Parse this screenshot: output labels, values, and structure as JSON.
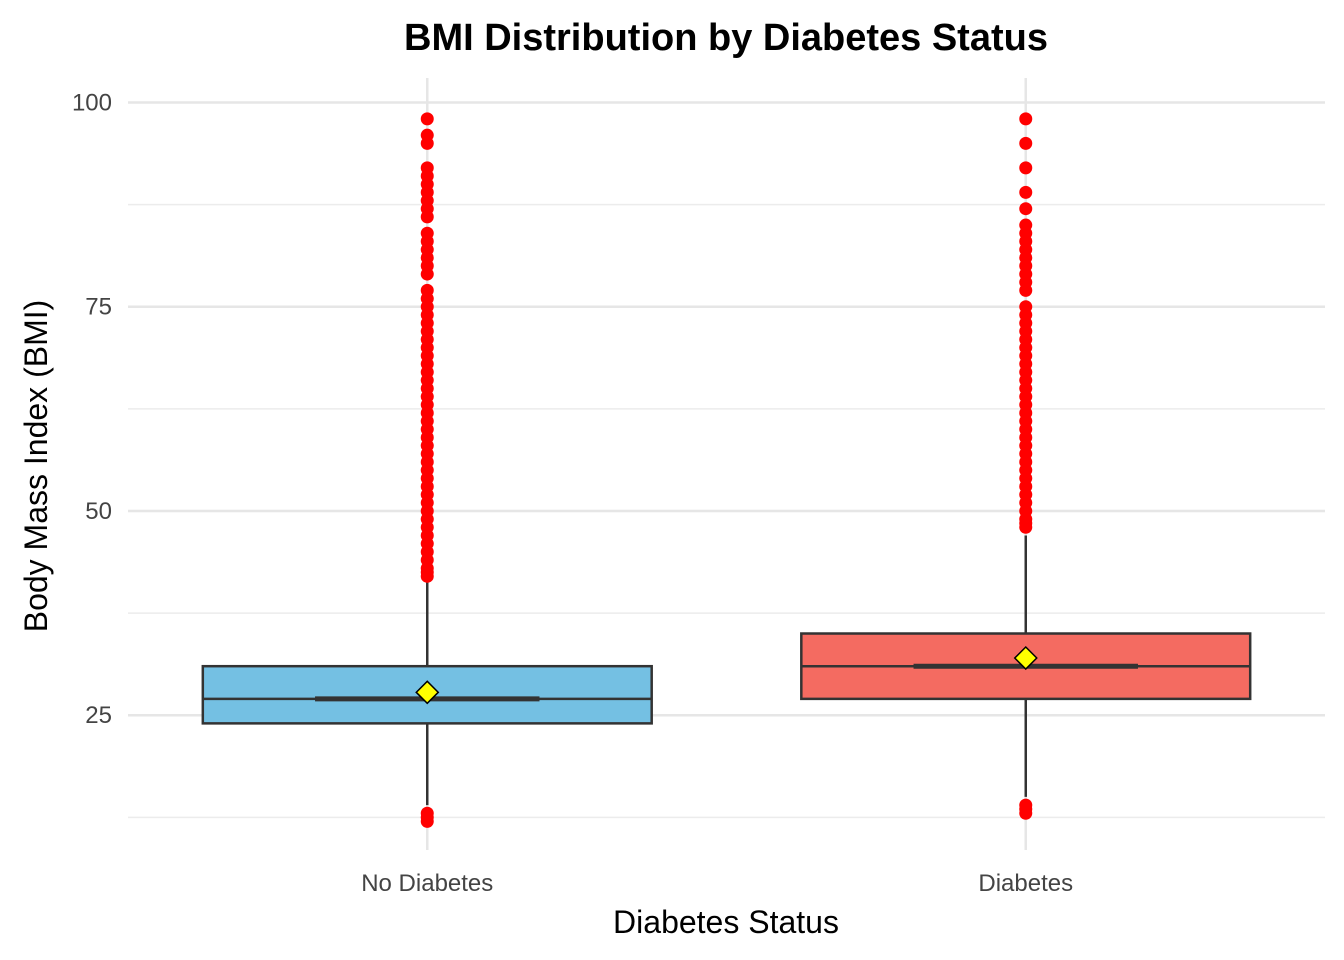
{
  "chart_data": {
    "type": "boxplot",
    "title": "BMI Distribution by Diabetes Status",
    "xlabel": "Diabetes Status",
    "ylabel": "Body Mass Index (BMI)",
    "ylim": [
      8.5,
      103
    ],
    "yticks": [
      25,
      50,
      75,
      100
    ],
    "yminor": [
      12.5,
      37.5,
      62.5,
      87.5
    ],
    "grid": true,
    "legend": "none",
    "colors": {
      "box_line": "#333333",
      "outlier": "#ff0000",
      "mean_marker": "#ffff00"
    },
    "groups": [
      {
        "category": "No Diabetes",
        "fill": "#74c0e3",
        "q1": 24,
        "median": 27,
        "q3": 31,
        "whisker_low": 14,
        "whisker_high": 41.5,
        "mean": 27.8,
        "outliers": [
          12,
          12.5,
          13,
          42,
          42.5,
          43,
          44,
          45,
          46,
          47,
          48,
          49,
          50,
          51,
          52,
          53,
          54,
          55,
          56,
          57,
          58,
          59,
          60,
          61,
          62,
          63,
          64,
          65,
          66,
          67,
          68,
          69,
          70,
          71,
          72,
          73,
          74,
          75,
          76,
          77,
          79,
          80,
          81,
          82,
          83,
          84,
          86,
          87,
          88,
          89,
          90,
          91,
          92,
          95,
          96,
          98
        ]
      },
      {
        "category": "Diabetes",
        "fill": "#f46b61",
        "q1": 27,
        "median": 31,
        "q3": 35,
        "whisker_low": 15,
        "whisker_high": 47,
        "mean": 32,
        "outliers": [
          13,
          13.5,
          14,
          48,
          48.5,
          49,
          50,
          51,
          52,
          53,
          54,
          55,
          56,
          57,
          58,
          59,
          60,
          61,
          62,
          63,
          64,
          65,
          66,
          67,
          68,
          69,
          70,
          71,
          72,
          73,
          74,
          75,
          77,
          78,
          79,
          80,
          81,
          82,
          83,
          84,
          85,
          87,
          89,
          92,
          95,
          98
        ]
      }
    ]
  }
}
